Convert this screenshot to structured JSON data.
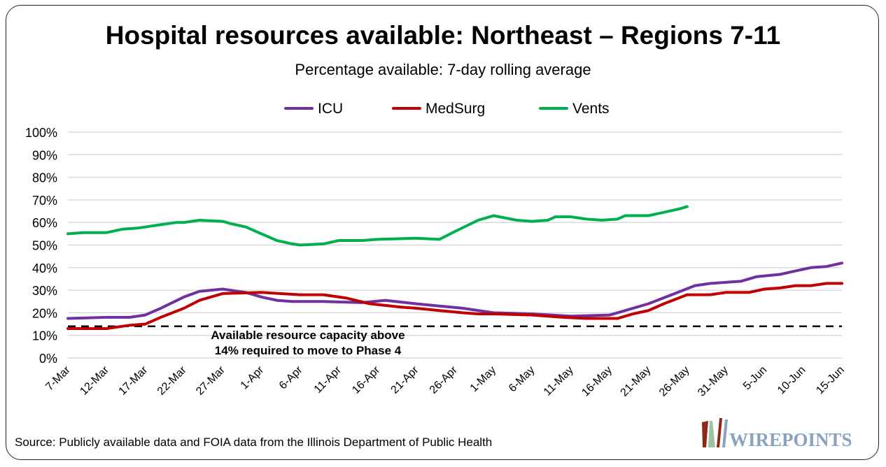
{
  "chart_data": {
    "type": "line",
    "title": "Hospital resources available: Northeast – Regions 7-11",
    "subtitle": "Percentage available: 7-day rolling average",
    "xlabel": "",
    "ylabel": "",
    "ylim": [
      0,
      100
    ],
    "yticks": [
      "0%",
      "10%",
      "20%",
      "30%",
      "40%",
      "50%",
      "60%",
      "70%",
      "80%",
      "90%",
      "100%"
    ],
    "xticks": [
      "7-Mar",
      "12-Mar",
      "17-Mar",
      "22-Mar",
      "27-Mar",
      "1-Apr",
      "6-Apr",
      "11-Apr",
      "16-Apr",
      "21-Apr",
      "26-Apr",
      "1-May",
      "6-May",
      "11-May",
      "16-May",
      "21-May",
      "26-May",
      "31-May",
      "5-Jun",
      "10-Jun",
      "15-Jun"
    ],
    "xrange": [
      "2020-03-07",
      "2020-06-15"
    ],
    "grid": true,
    "legend_position": "top",
    "series": [
      {
        "name": "ICU",
        "color": "#7030A0",
        "points": [
          [
            "2020-03-07",
            17.5
          ],
          [
            "2020-03-12",
            18
          ],
          [
            "2020-03-15",
            18
          ],
          [
            "2020-03-17",
            19
          ],
          [
            "2020-03-19",
            22
          ],
          [
            "2020-03-22",
            27
          ],
          [
            "2020-03-24",
            29.5
          ],
          [
            "2020-03-27",
            30.5
          ],
          [
            "2020-03-30",
            29
          ],
          [
            "2020-04-01",
            27
          ],
          [
            "2020-04-03",
            25.5
          ],
          [
            "2020-04-05",
            25
          ],
          [
            "2020-04-09",
            25
          ],
          [
            "2020-04-14",
            24.5
          ],
          [
            "2020-04-17",
            25.5
          ],
          [
            "2020-04-21",
            24
          ],
          [
            "2020-04-24",
            23
          ],
          [
            "2020-04-27",
            22
          ],
          [
            "2020-05-01",
            20
          ],
          [
            "2020-05-06",
            19.5
          ],
          [
            "2020-05-11",
            18.5
          ],
          [
            "2020-05-16",
            19
          ],
          [
            "2020-05-18",
            21
          ],
          [
            "2020-05-21",
            24
          ],
          [
            "2020-05-24",
            28
          ],
          [
            "2020-05-27",
            32
          ],
          [
            "2020-05-29",
            33
          ],
          [
            "2020-06-02",
            34
          ],
          [
            "2020-06-04",
            36
          ],
          [
            "2020-06-07",
            37
          ],
          [
            "2020-06-09",
            38.5
          ],
          [
            "2020-06-11",
            40
          ],
          [
            "2020-06-13",
            40.5
          ],
          [
            "2020-06-15",
            42
          ]
        ]
      },
      {
        "name": "MedSurg",
        "color": "#C00000",
        "points": [
          [
            "2020-03-07",
            13
          ],
          [
            "2020-03-12",
            13
          ],
          [
            "2020-03-15",
            14.5
          ],
          [
            "2020-03-17",
            15
          ],
          [
            "2020-03-19",
            18
          ],
          [
            "2020-03-22",
            22
          ],
          [
            "2020-03-24",
            25.5
          ],
          [
            "2020-03-27",
            28.5
          ],
          [
            "2020-04-01",
            29
          ],
          [
            "2020-04-06",
            28
          ],
          [
            "2020-04-09",
            28
          ],
          [
            "2020-04-12",
            26.5
          ],
          [
            "2020-04-15",
            24
          ],
          [
            "2020-04-19",
            22.5
          ],
          [
            "2020-04-21",
            22
          ],
          [
            "2020-04-24",
            21
          ],
          [
            "2020-04-27",
            20
          ],
          [
            "2020-04-29",
            19.5
          ],
          [
            "2020-05-01",
            19.5
          ],
          [
            "2020-05-06",
            19
          ],
          [
            "2020-05-10",
            18
          ],
          [
            "2020-05-13",
            17.5
          ],
          [
            "2020-05-17",
            17.5
          ],
          [
            "2020-05-19",
            19.5
          ],
          [
            "2020-05-21",
            21
          ],
          [
            "2020-05-23",
            24
          ],
          [
            "2020-05-26",
            28
          ],
          [
            "2020-05-29",
            28
          ],
          [
            "2020-05-31",
            29
          ],
          [
            "2020-06-03",
            29
          ],
          [
            "2020-06-05",
            30.5
          ],
          [
            "2020-06-07",
            31
          ],
          [
            "2020-06-09",
            32
          ],
          [
            "2020-06-11",
            32
          ],
          [
            "2020-06-13",
            33
          ],
          [
            "2020-06-15",
            33
          ]
        ]
      },
      {
        "name": "Vents",
        "color": "#00B050",
        "points": [
          [
            "2020-03-07",
            55
          ],
          [
            "2020-03-09",
            55.5
          ],
          [
            "2020-03-12",
            55.5
          ],
          [
            "2020-03-14",
            57
          ],
          [
            "2020-03-16",
            57.5
          ],
          [
            "2020-03-17",
            58
          ],
          [
            "2020-03-19",
            59
          ],
          [
            "2020-03-21",
            60
          ],
          [
            "2020-03-22",
            60
          ],
          [
            "2020-03-24",
            61
          ],
          [
            "2020-03-27",
            60.5
          ],
          [
            "2020-03-28",
            59.5
          ],
          [
            "2020-03-30",
            58
          ],
          [
            "2020-04-01",
            55
          ],
          [
            "2020-04-03",
            52
          ],
          [
            "2020-04-05",
            50.5
          ],
          [
            "2020-04-06",
            50
          ],
          [
            "2020-04-09",
            50.5
          ],
          [
            "2020-04-11",
            52
          ],
          [
            "2020-04-14",
            52
          ],
          [
            "2020-04-16",
            52.5
          ],
          [
            "2020-04-21",
            53
          ],
          [
            "2020-04-24",
            52.5
          ],
          [
            "2020-04-26",
            56
          ],
          [
            "2020-04-29",
            61
          ],
          [
            "2020-05-01",
            63
          ],
          [
            "2020-05-04",
            61
          ],
          [
            "2020-05-06",
            60.5
          ],
          [
            "2020-05-08",
            61
          ],
          [
            "2020-05-09",
            62.5
          ],
          [
            "2020-05-11",
            62.5
          ],
          [
            "2020-05-13",
            61.5
          ],
          [
            "2020-05-15",
            61
          ],
          [
            "2020-05-17",
            61.5
          ],
          [
            "2020-05-18",
            63
          ],
          [
            "2020-05-21",
            63
          ],
          [
            "2020-05-23",
            64.5
          ],
          [
            "2020-05-25",
            66
          ],
          [
            "2020-05-26",
            67
          ]
        ]
      }
    ],
    "threshold": {
      "value": 14,
      "style": "dashed",
      "color": "#000000"
    },
    "annotation": [
      "Available resource capacity above",
      "14% required to move to Phase 4"
    ]
  },
  "source": "Source: Publicly available data and FOIA data from the Illinois Department of Public Health",
  "logo_text": "WIREPOINTS"
}
